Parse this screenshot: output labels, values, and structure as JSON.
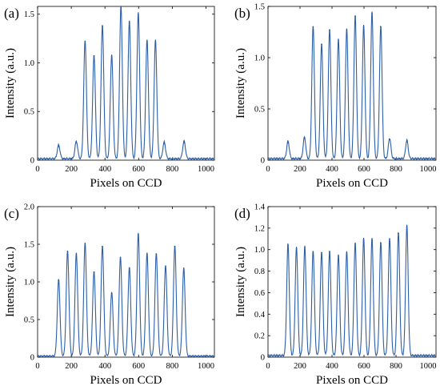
{
  "chart_data": [
    {
      "type": "line",
      "panel_label": "(a)",
      "xlabel": "Pixels on CCD",
      "ylabel": "Intensity (a.u.)",
      "xlim": [
        0,
        1050
      ],
      "ylim": [
        0,
        1.58
      ],
      "xticks": [
        0,
        200,
        400,
        600,
        800,
        1000
      ],
      "yticks": [
        0,
        0.5,
        1,
        1.5
      ],
      "ytick_labels": [
        "0",
        "0.5",
        "1.0",
        "1.5"
      ],
      "grid": false,
      "series_color": "#2c5fa8",
      "peaks": [
        {
          "x": 125,
          "y": 0.14
        },
        {
          "x": 230,
          "y": 0.18
        },
        {
          "x": 282,
          "y": 1.22
        },
        {
          "x": 335,
          "y": 1.07
        },
        {
          "x": 385,
          "y": 1.38
        },
        {
          "x": 440,
          "y": 1.07
        },
        {
          "x": 495,
          "y": 1.58
        },
        {
          "x": 545,
          "y": 1.42
        },
        {
          "x": 598,
          "y": 1.5
        },
        {
          "x": 650,
          "y": 1.22
        },
        {
          "x": 700,
          "y": 1.22
        },
        {
          "x": 752,
          "y": 0.17
        },
        {
          "x": 870,
          "y": 0.18
        }
      ]
    },
    {
      "type": "line",
      "panel_label": "(b)",
      "xlabel": "Pixels on CCD",
      "ylabel": "Intensity (a.u.)",
      "xlim": [
        0,
        1050
      ],
      "ylim": [
        0,
        1.5
      ],
      "xticks": [
        0,
        200,
        400,
        600,
        800,
        1000
      ],
      "yticks": [
        0,
        0.5,
        1,
        1.5
      ],
      "ytick_labels": [
        "0",
        "0.5",
        "1.0",
        "1.5"
      ],
      "grid": false,
      "series_color": "#2c5fa8",
      "peaks": [
        {
          "x": 125,
          "y": 0.17
        },
        {
          "x": 228,
          "y": 0.21
        },
        {
          "x": 282,
          "y": 1.3
        },
        {
          "x": 335,
          "y": 1.13
        },
        {
          "x": 385,
          "y": 1.27
        },
        {
          "x": 440,
          "y": 1.17
        },
        {
          "x": 492,
          "y": 1.27
        },
        {
          "x": 545,
          "y": 1.4
        },
        {
          "x": 598,
          "y": 1.3
        },
        {
          "x": 650,
          "y": 1.43
        },
        {
          "x": 705,
          "y": 1.3
        },
        {
          "x": 760,
          "y": 0.2
        },
        {
          "x": 868,
          "y": 0.18
        }
      ]
    },
    {
      "type": "line",
      "panel_label": "(c)",
      "xlabel": "Pixels on CCD",
      "ylabel": "Intensity (a.u.)",
      "xlim": [
        0,
        1050
      ],
      "ylim": [
        0,
        2.0
      ],
      "xticks": [
        0,
        200,
        400,
        600,
        800,
        1000
      ],
      "yticks": [
        0,
        0.5,
        1,
        1.5,
        2
      ],
      "ytick_labels": [
        "0",
        "0.5",
        "1.0",
        "1.5",
        "2.0"
      ],
      "grid": false,
      "series_color": "#2c5fa8",
      "peaks": [
        {
          "x": 125,
          "y": 1.02
        },
        {
          "x": 178,
          "y": 1.4
        },
        {
          "x": 230,
          "y": 1.37
        },
        {
          "x": 282,
          "y": 1.51
        },
        {
          "x": 335,
          "y": 1.13
        },
        {
          "x": 385,
          "y": 1.47
        },
        {
          "x": 440,
          "y": 0.85
        },
        {
          "x": 492,
          "y": 1.32
        },
        {
          "x": 545,
          "y": 1.18
        },
        {
          "x": 598,
          "y": 1.63
        },
        {
          "x": 650,
          "y": 1.37
        },
        {
          "x": 705,
          "y": 1.37
        },
        {
          "x": 760,
          "y": 1.21
        },
        {
          "x": 815,
          "y": 1.47
        },
        {
          "x": 868,
          "y": 1.17
        }
      ]
    },
    {
      "type": "line",
      "panel_label": "(d)",
      "xlabel": "Pixels on CCD",
      "ylabel": "Intensity (a.u.)",
      "xlim": [
        0,
        1050
      ],
      "ylim": [
        0,
        1.4
      ],
      "xticks": [
        0,
        200,
        400,
        600,
        800,
        1000
      ],
      "yticks": [
        0,
        0.2,
        0.4,
        0.6,
        0.8,
        1.0,
        1.2,
        1.4
      ],
      "ytick_labels": [
        "0",
        "0.2",
        "0.4",
        "0.6",
        "0.8",
        "1.0",
        "1.2",
        "1.4"
      ],
      "grid": false,
      "series_color": "#2c5fa8",
      "peaks": [
        {
          "x": 125,
          "y": 1.04
        },
        {
          "x": 178,
          "y": 1.01
        },
        {
          "x": 230,
          "y": 1.02
        },
        {
          "x": 282,
          "y": 0.98
        },
        {
          "x": 335,
          "y": 0.97
        },
        {
          "x": 385,
          "y": 0.98
        },
        {
          "x": 440,
          "y": 0.94
        },
        {
          "x": 492,
          "y": 0.97
        },
        {
          "x": 545,
          "y": 1.05
        },
        {
          "x": 598,
          "y": 1.09
        },
        {
          "x": 650,
          "y": 1.09
        },
        {
          "x": 705,
          "y": 1.06
        },
        {
          "x": 760,
          "y": 1.1
        },
        {
          "x": 815,
          "y": 1.15
        },
        {
          "x": 868,
          "y": 1.21
        }
      ]
    }
  ]
}
